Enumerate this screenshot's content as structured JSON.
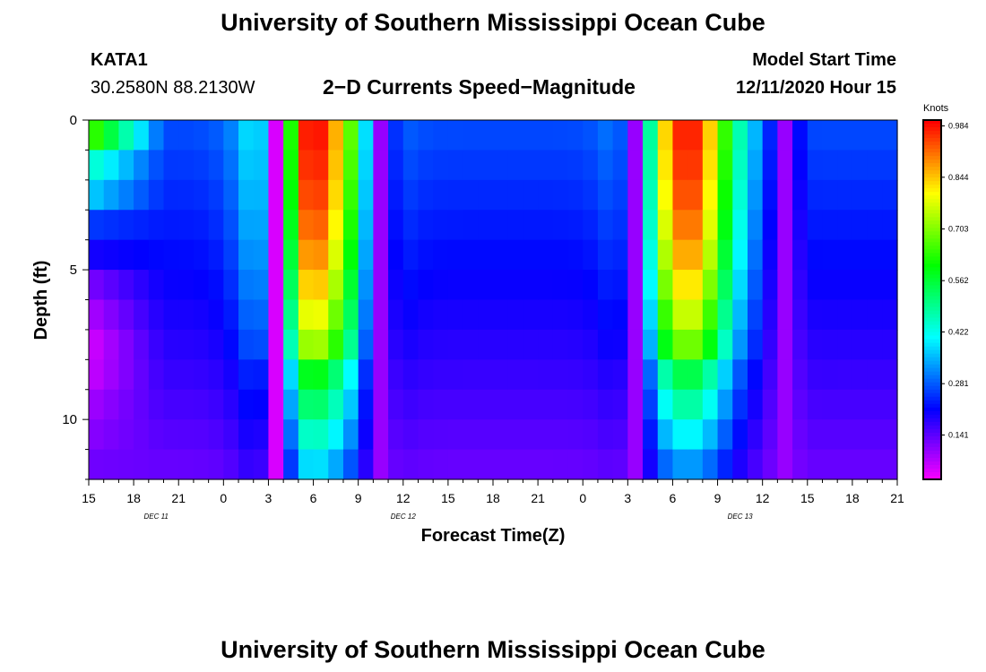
{
  "header": {
    "title": "University of Southern Mississippi Ocean Cube",
    "station": "KATA1",
    "coords": "30.2580N 88.2130W",
    "subtitle": "2−D Currents Speed−Magnitude",
    "model_label": "Model Start Time",
    "model_time": "12/11/2020 Hour 15"
  },
  "footer": {
    "title": "University of Southern Mississippi Ocean Cube"
  },
  "chart_data": {
    "type": "heatmap",
    "title": "2−D Currents Speed−Magnitude",
    "xlabel": "Forecast Time(Z)",
    "ylabel": "Depth (ft)",
    "x_tick_labels": [
      "15",
      "18",
      "21",
      "0",
      "3",
      "6",
      "9",
      "12",
      "15",
      "18",
      "21",
      "0",
      "3",
      "6",
      "9",
      "12",
      "15",
      "18",
      "21"
    ],
    "day_labels": [
      {
        "label": "DEC 11",
        "after_tick": 1.5
      },
      {
        "label": "DEC 12",
        "after_tick": 7
      },
      {
        "label": "DEC 13",
        "after_tick": 14.5
      }
    ],
    "y_ticks": [
      0,
      5,
      10
    ],
    "y_range": [
      0,
      12
    ],
    "x_range_hours": [
      0,
      54
    ],
    "depth_levels": 12,
    "colorbar": {
      "unit": "Knots",
      "ticks": [
        "0.984",
        "0.844",
        "0.703",
        "0.562",
        "0.422",
        "0.281",
        "0.141"
      ],
      "tick_values": [
        0.984,
        0.844,
        0.703,
        0.562,
        0.422,
        0.281,
        0.141
      ],
      "range": [
        0.02,
        1.0
      ]
    },
    "peaks": [
      {
        "hour": 15,
        "max": 1.0,
        "width": 3.3,
        "decay_depth": 14
      },
      {
        "hour": 40,
        "max": 0.99,
        "width": 3.1,
        "decay_depth": 13
      }
    ],
    "lows": [
      {
        "hour": 12.5,
        "value": 0.05
      },
      {
        "hour": 19.5,
        "value": 0.1
      },
      {
        "hour": 36.5,
        "value": 0.1
      },
      {
        "hour": 46.5,
        "value": 0.1
      }
    ],
    "early_profile": [
      0.68,
      0.46,
      0.38,
      0.26,
      0.2,
      0.12,
      0.08,
      0.05,
      0.06,
      0.09,
      0.11,
      0.13
    ]
  }
}
